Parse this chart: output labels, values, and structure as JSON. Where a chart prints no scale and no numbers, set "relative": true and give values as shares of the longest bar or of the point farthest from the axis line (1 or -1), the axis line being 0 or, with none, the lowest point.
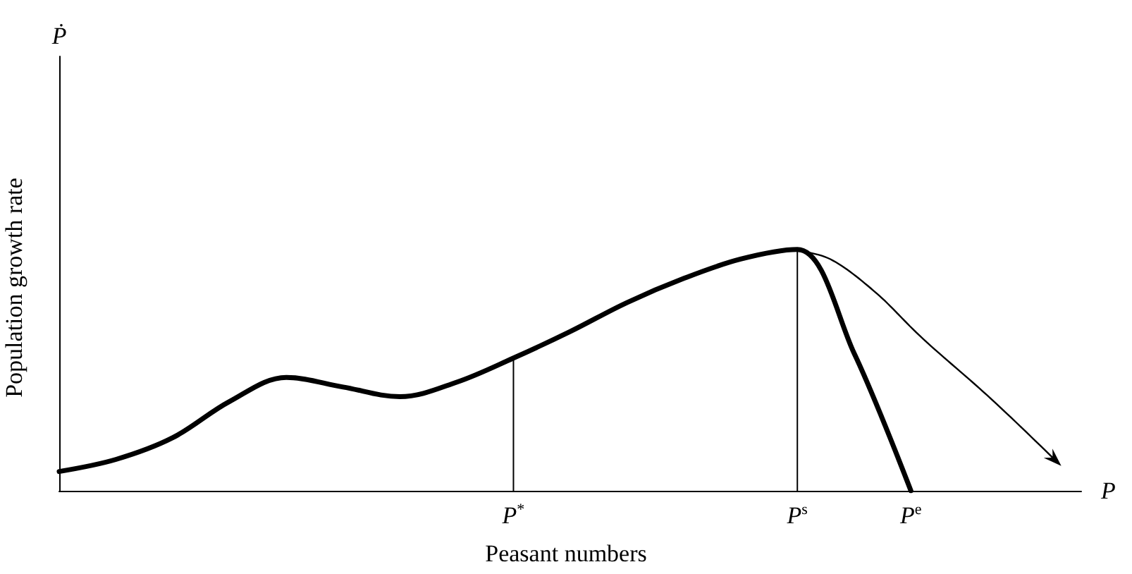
{
  "chart_data": {
    "type": "line",
    "relative": true,
    "xlabel": "Peasant numbers",
    "ylabel": "Population growth rate",
    "annotations": [
      "P",
      "Ṗ"
    ],
    "categories": [
      null,
      null,
      null,
      null,
      null,
      null,
      null,
      null,
      "P$^{*}$",
      null,
      null,
      null,
      null,
      "P$^{s}$",
      null,
      "P$^{e}$",
      null,
      null,
      null
    ],
    "marker": "none",
    "line_style": "solid",
    "series": [
      {
        "color": "#000000",
        "values": [
          0.08,
          0.13,
          0.22,
          0.37,
          0.47,
          0.43,
          0.39,
          0.45,
          0.55,
          0.66,
          0.78,
          0.88,
          0.96,
          1,
          0.57,
          0,
          null,
          null,
          null
        ]
      },
      {
        "type": "bar",
        "color": "#000000",
        "values": [
          null,
          null,
          null,
          null,
          null,
          null,
          null,
          null,
          0.55,
          null,
          null,
          null,
          null,
          1,
          null,
          null,
          null,
          null,
          null
        ]
      }
    ]
  }
}
